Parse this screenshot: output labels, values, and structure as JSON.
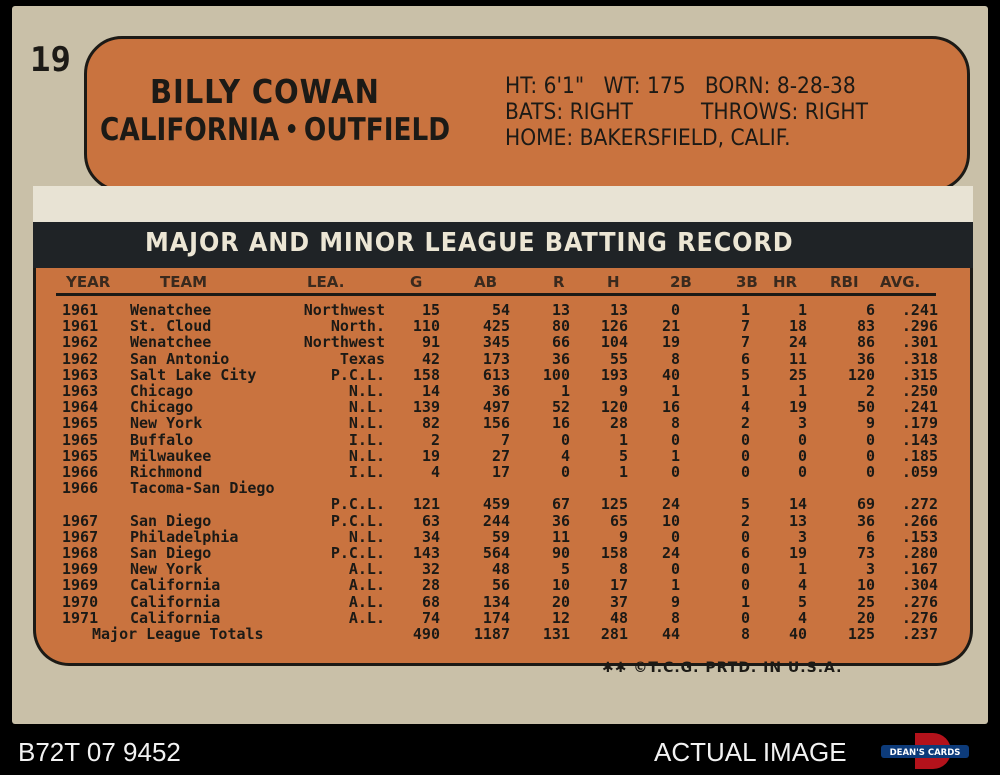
{
  "card": {
    "number": "19",
    "player_name": "BILLY COWAN",
    "team": "CALIFORNIA",
    "position": "OUTFIELD",
    "bio": {
      "height": "HT: 6'1\"",
      "weight": "WT: 175",
      "born": "BORN: 8-28-38",
      "bats": "BATS: RIGHT",
      "throws": "THROWS: RIGHT",
      "home": "HOME: BAKERSFIELD, CALIF."
    },
    "record_title": "MAJOR AND MINOR LEAGUE BATTING RECORD",
    "columns": [
      "YEAR",
      "TEAM",
      "LEA.",
      "G",
      "AB",
      "R",
      "H",
      "2B",
      "3B",
      "HR",
      "RBI",
      "AVG."
    ],
    "rows": [
      [
        "1961",
        "Wenatchee",
        "Northwest",
        "15",
        "54",
        "13",
        "13",
        "0",
        "1",
        "1",
        "6",
        ".241"
      ],
      [
        "1961",
        "St. Cloud",
        "North.",
        "110",
        "425",
        "80",
        "126",
        "21",
        "7",
        "18",
        "83",
        ".296"
      ],
      [
        "1962",
        "Wenatchee",
        "Northwest",
        "91",
        "345",
        "66",
        "104",
        "19",
        "7",
        "24",
        "86",
        ".301"
      ],
      [
        "1962",
        "San Antonio",
        "Texas",
        "42",
        "173",
        "36",
        "55",
        "8",
        "6",
        "11",
        "36",
        ".318"
      ],
      [
        "1963",
        "Salt Lake City",
        "P.C.L.",
        "158",
        "613",
        "100",
        "193",
        "40",
        "5",
        "25",
        "120",
        ".315"
      ],
      [
        "1963",
        "Chicago",
        "N.L.",
        "14",
        "36",
        "1",
        "9",
        "1",
        "1",
        "1",
        "2",
        ".250"
      ],
      [
        "1964",
        "Chicago",
        "N.L.",
        "139",
        "497",
        "52",
        "120",
        "16",
        "4",
        "19",
        "50",
        ".241"
      ],
      [
        "1965",
        "New York",
        "N.L.",
        "82",
        "156",
        "16",
        "28",
        "8",
        "2",
        "3",
        "9",
        ".179"
      ],
      [
        "1965",
        "Buffalo",
        "I.L.",
        "2",
        "7",
        "0",
        "1",
        "0",
        "0",
        "0",
        "0",
        ".143"
      ],
      [
        "1965",
        "Milwaukee",
        "N.L.",
        "19",
        "27",
        "4",
        "5",
        "1",
        "0",
        "0",
        "0",
        ".185"
      ],
      [
        "1966",
        "Richmond",
        "I.L.",
        "4",
        "17",
        "0",
        "1",
        "0",
        "0",
        "0",
        "0",
        ".059"
      ],
      [
        "1966",
        "Tacoma-San Diego",
        "",
        "",
        "",
        "",
        "",
        "",
        "",
        "",
        "",
        ""
      ],
      [
        "",
        "",
        "P.C.L.",
        "121",
        "459",
        "67",
        "125",
        "24",
        "5",
        "14",
        "69",
        ".272"
      ],
      [
        "1967",
        "San Diego",
        "P.C.L.",
        "63",
        "244",
        "36",
        "65",
        "10",
        "2",
        "13",
        "36",
        ".266"
      ],
      [
        "1967",
        "Philadelphia",
        "N.L.",
        "34",
        "59",
        "11",
        "9",
        "0",
        "0",
        "3",
        "6",
        ".153"
      ],
      [
        "1968",
        "San Diego",
        "P.C.L.",
        "143",
        "564",
        "90",
        "158",
        "24",
        "6",
        "19",
        "73",
        ".280"
      ],
      [
        "1969",
        "New York",
        "A.L.",
        "32",
        "48",
        "5",
        "8",
        "0",
        "0",
        "1",
        "3",
        ".167"
      ],
      [
        "1969",
        "California",
        "A.L.",
        "28",
        "56",
        "10",
        "17",
        "1",
        "0",
        "4",
        "10",
        ".304"
      ],
      [
        "1970",
        "California",
        "A.L.",
        "68",
        "134",
        "20",
        "37",
        "9",
        "1",
        "5",
        "25",
        ".276"
      ],
      [
        "1971",
        "California",
        "A.L.",
        "74",
        "174",
        "12",
        "48",
        "8",
        "0",
        "4",
        "20",
        ".276"
      ]
    ],
    "totals": [
      "Major League Totals",
      "490",
      "1187",
      "131",
      "281",
      "44",
      "8",
      "40",
      "125",
      ".237"
    ],
    "copyright": "✱✱ ©T.C.G. PRTD. IN U.S.A."
  },
  "listing": {
    "cert_id": "B72T 07 9452",
    "image_label": "ACTUAL IMAGE",
    "logo_text": "DEAN'S CARDS",
    "logo_letter": "D"
  },
  "colors": {
    "card_stock": "#c9c0a8",
    "orange": "#c9733f",
    "ink": "#1c1a16",
    "banner": "#1f2326"
  }
}
